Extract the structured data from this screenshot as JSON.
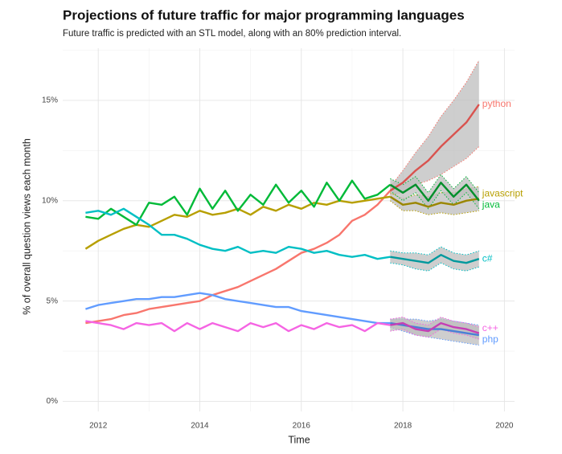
{
  "chart_data": {
    "type": "line",
    "title": "Projections of future traffic for major programming languages",
    "subtitle": "Future traffic is predicted with an STL model, along with an 80% prediction interval.",
    "xlabel": "Time",
    "ylabel": "% of overall question views each month",
    "xlim": [
      2011.3,
      2020.2
    ],
    "ylim": [
      -0.5,
      17.6
    ],
    "xticks": [
      2012,
      2014,
      2016,
      2018,
      2020
    ],
    "yticks": [
      {
        "value": 0,
        "label": "0%"
      },
      {
        "value": 5,
        "label": "5%"
      },
      {
        "value": 10,
        "label": "10%"
      },
      {
        "value": 15,
        "label": "15%"
      }
    ],
    "grid": true,
    "band_color": "#bdbdbd",
    "x": [
      2011.75,
      2012,
      2012.25,
      2012.5,
      2012.75,
      2013,
      2013.25,
      2013.5,
      2013.75,
      2014,
      2014.25,
      2014.5,
      2014.75,
      2015,
      2015.25,
      2015.5,
      2015.75,
      2016,
      2016.25,
      2016.5,
      2016.75,
      2017,
      2017.25,
      2017.5,
      2017.75
    ],
    "forecast_x": [
      2017.75,
      2018,
      2018.25,
      2018.5,
      2018.75,
      2019,
      2019.25,
      2019.5
    ],
    "series": [
      {
        "name": "python",
        "color": "#f8766d",
        "forecast_color": "#d9534f",
        "values": [
          3.9,
          4.0,
          4.1,
          4.3,
          4.4,
          4.6,
          4.7,
          4.8,
          4.9,
          5.0,
          5.3,
          5.5,
          5.7,
          6.0,
          6.3,
          6.6,
          7.0,
          7.4,
          7.6,
          7.9,
          8.3,
          9.0,
          9.3,
          9.8,
          10.5
        ],
        "forecast": [
          10.5,
          10.9,
          11.5,
          12.0,
          12.7,
          13.3,
          13.9,
          14.8
        ],
        "lower": [
          10.3,
          10.4,
          10.8,
          11.0,
          11.3,
          11.7,
          12.1,
          12.7
        ],
        "upper": [
          10.7,
          11.5,
          12.4,
          13.2,
          14.2,
          15.0,
          15.9,
          17.0
        ]
      },
      {
        "name": "javascript",
        "color": "#b79f00",
        "forecast_color": "#9a8600",
        "values": [
          7.6,
          8.0,
          8.3,
          8.6,
          8.8,
          8.7,
          9.0,
          9.3,
          9.2,
          9.5,
          9.3,
          9.4,
          9.6,
          9.3,
          9.7,
          9.5,
          9.8,
          9.6,
          9.9,
          9.8,
          10.0,
          9.9,
          10.0,
          10.1,
          10.2
        ],
        "forecast": [
          10.2,
          9.8,
          9.9,
          9.7,
          9.9,
          9.8,
          10.0,
          10.1
        ],
        "lower": [
          10.0,
          9.5,
          9.5,
          9.3,
          9.4,
          9.3,
          9.4,
          9.5
        ],
        "upper": [
          10.4,
          10.1,
          10.3,
          10.2,
          10.4,
          10.4,
          10.6,
          10.7
        ]
      },
      {
        "name": "java",
        "color": "#00ba38",
        "forecast_color": "#008f2b",
        "values": [
          9.2,
          9.1,
          9.6,
          9.2,
          8.8,
          9.9,
          9.8,
          10.2,
          9.3,
          10.6,
          9.6,
          10.5,
          9.5,
          10.3,
          9.8,
          10.8,
          9.9,
          10.5,
          9.7,
          10.9,
          10.0,
          11.0,
          10.1,
          10.3,
          10.8
        ],
        "forecast": [
          10.8,
          10.4,
          10.8,
          10.0,
          10.9,
          10.2,
          10.8,
          10.0
        ],
        "lower": [
          10.5,
          10.0,
          10.4,
          9.6,
          10.5,
          9.8,
          10.4,
          9.6
        ],
        "upper": [
          11.1,
          10.8,
          11.2,
          10.4,
          11.3,
          10.6,
          11.2,
          10.4
        ]
      },
      {
        "name": "c#",
        "color": "#00bfc4",
        "forecast_color": "#00999d",
        "values": [
          9.4,
          9.5,
          9.3,
          9.6,
          9.2,
          8.8,
          8.3,
          8.3,
          8.1,
          7.8,
          7.6,
          7.5,
          7.7,
          7.4,
          7.5,
          7.4,
          7.7,
          7.6,
          7.4,
          7.5,
          7.3,
          7.2,
          7.3,
          7.1,
          7.2
        ],
        "forecast": [
          7.2,
          7.1,
          7.0,
          6.9,
          7.3,
          7.0,
          6.9,
          7.1
        ],
        "lower": [
          6.9,
          6.8,
          6.6,
          6.5,
          6.9,
          6.6,
          6.5,
          6.7
        ],
        "upper": [
          7.5,
          7.4,
          7.4,
          7.3,
          7.7,
          7.4,
          7.3,
          7.5
        ]
      },
      {
        "name": "php",
        "color": "#619cff",
        "forecast_color": "#4a7fd6",
        "values": [
          4.6,
          4.8,
          4.9,
          5.0,
          5.1,
          5.1,
          5.2,
          5.2,
          5.3,
          5.4,
          5.3,
          5.1,
          5.0,
          4.9,
          4.8,
          4.7,
          4.7,
          4.5,
          4.4,
          4.3,
          4.2,
          4.1,
          4.0,
          3.9,
          3.9
        ],
        "forecast": [
          3.9,
          3.8,
          3.7,
          3.6,
          3.6,
          3.5,
          3.4,
          3.3
        ],
        "lower": [
          3.7,
          3.5,
          3.3,
          3.2,
          3.1,
          3.0,
          2.9,
          2.8
        ],
        "upper": [
          4.1,
          4.1,
          4.1,
          4.0,
          4.1,
          4.0,
          3.9,
          3.8
        ]
      },
      {
        "name": "c++",
        "color": "#f564e3",
        "forecast_color": "#c53fb5",
        "values": [
          4.0,
          3.9,
          3.8,
          3.6,
          3.9,
          3.8,
          3.9,
          3.5,
          3.9,
          3.6,
          3.9,
          3.7,
          3.5,
          3.9,
          3.7,
          3.9,
          3.5,
          3.8,
          3.6,
          3.9,
          3.7,
          3.8,
          3.5,
          3.9,
          3.8
        ],
        "forecast": [
          3.8,
          3.9,
          3.6,
          3.5,
          3.9,
          3.7,
          3.6,
          3.4
        ],
        "lower": [
          3.5,
          3.6,
          3.3,
          3.2,
          3.6,
          3.4,
          3.3,
          3.1
        ],
        "upper": [
          4.1,
          4.2,
          3.9,
          3.8,
          4.2,
          4.0,
          3.9,
          3.7
        ]
      }
    ]
  }
}
